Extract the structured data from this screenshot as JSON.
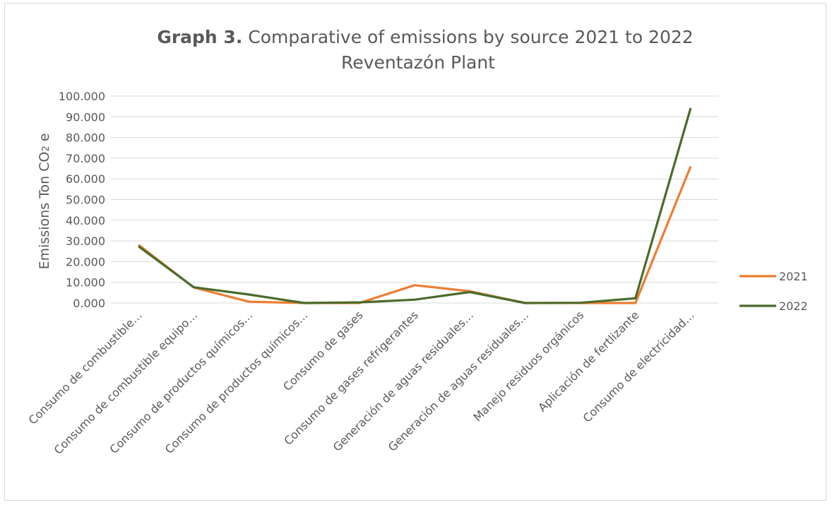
{
  "chart_data": {
    "type": "line",
    "title_bold": "Graph 3.",
    "title_rest": " Comparative of emissions by source 2021 to 2022",
    "title_line2": "Reventazón Plant",
    "ylabel_main": "Emissions Ton CO",
    "ylabel_sub": "2",
    "ylabel_tail": " e",
    "xlabel": "",
    "ylim": [
      0,
      100
    ],
    "yticks": [
      0,
      10,
      20,
      30,
      40,
      50,
      60,
      70,
      80,
      90,
      100
    ],
    "ytick_labels": [
      "0.000",
      "10.000",
      "20.000",
      "30.000",
      "40.000",
      "50.000",
      "60.000",
      "70.000",
      "80.000",
      "90.000",
      "100.000"
    ],
    "categories": [
      "Consumo de combustible…",
      "Consumo de combustible equipo…",
      "Consumo de productos químicos…",
      "Consumo de productos químicos…",
      "Consumo de gases",
      "Consumo de gases refrigerantes",
      "Generación de aguas residuales…",
      "Generación de aguas residuales…",
      "Manejo residuos orgánicos",
      "Aplicación de fertlizante",
      "Consumo de electricidad…"
    ],
    "series": [
      {
        "name": "2021",
        "color": "#ed7d31",
        "values": [
          28.1,
          7.5,
          0.6,
          0.0,
          0.0,
          8.6,
          5.7,
          0.0,
          0.0,
          0.0,
          66.0
        ]
      },
      {
        "name": "2022",
        "color": "#4a6b2b",
        "values": [
          27.4,
          7.6,
          4.1,
          0.0,
          0.3,
          1.6,
          5.3,
          0.0,
          0.1,
          2.3,
          94.2
        ]
      }
    ],
    "grid": true,
    "legend_position": "right"
  }
}
